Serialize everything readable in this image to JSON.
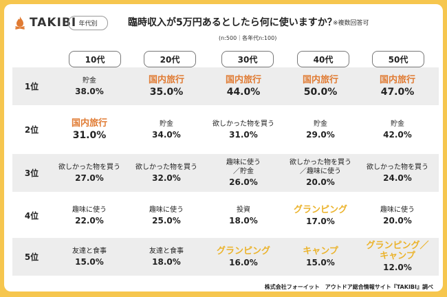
{
  "header": {
    "logo_text": "TAKIBI",
    "badge": "年代別",
    "question": "臨時収入が5万円あるとしたら何に使いますか？",
    "note": "※複数回答可",
    "sample": "(n:500｜各年代n:100)"
  },
  "colors": {
    "background": "#F6C64E",
    "accent_orange": "#E07B33",
    "accent_gold": "#EBB32C",
    "row_shade": "#EDEDED"
  },
  "chart_data": {
    "type": "table",
    "columns": [
      "10代",
      "20代",
      "30代",
      "40代",
      "50代"
    ],
    "rows": [
      {
        "rank": "1位",
        "cells": [
          {
            "item": "貯金",
            "value": "38.0%",
            "style": "plain"
          },
          {
            "item": "国内旅行",
            "value": "35.0%",
            "style": "orange"
          },
          {
            "item": "国内旅行",
            "value": "44.0%",
            "style": "orange"
          },
          {
            "item": "国内旅行",
            "value": "50.0%",
            "style": "orange"
          },
          {
            "item": "国内旅行",
            "value": "47.0%",
            "style": "orange"
          }
        ]
      },
      {
        "rank": "2位",
        "cells": [
          {
            "item": "国内旅行",
            "value": "31.0%",
            "style": "orange"
          },
          {
            "item": "貯金",
            "value": "34.0%",
            "style": "plain"
          },
          {
            "item": "欲しかった物を買う",
            "value": "31.0%",
            "style": "plain"
          },
          {
            "item": "貯金",
            "value": "29.0%",
            "style": "plain"
          },
          {
            "item": "貯金",
            "value": "42.0%",
            "style": "plain"
          }
        ]
      },
      {
        "rank": "3位",
        "cells": [
          {
            "item": "欲しかった物を買う",
            "value": "27.0%",
            "style": "plain"
          },
          {
            "item": "欲しかった物を買う",
            "value": "32.0%",
            "style": "plain"
          },
          {
            "item": "趣味に使う\n／貯金",
            "value": "26.0%",
            "style": "plain"
          },
          {
            "item": "欲しかった物を買う\n／趣味に使う",
            "value": "20.0%",
            "style": "plain"
          },
          {
            "item": "欲しかった物を買う",
            "value": "24.0%",
            "style": "plain"
          }
        ]
      },
      {
        "rank": "4位",
        "cells": [
          {
            "item": "趣味に使う",
            "value": "22.0%",
            "style": "plain"
          },
          {
            "item": "趣味に使う",
            "value": "25.0%",
            "style": "plain"
          },
          {
            "item": "投資",
            "value": "18.0%",
            "style": "plain"
          },
          {
            "item": "グランピング",
            "value": "17.0%",
            "style": "gold"
          },
          {
            "item": "趣味に使う",
            "value": "20.0%",
            "style": "plain"
          }
        ]
      },
      {
        "rank": "5位",
        "cells": [
          {
            "item": "友達と食事",
            "value": "15.0%",
            "style": "plain"
          },
          {
            "item": "友達と食事",
            "value": "18.0%",
            "style": "plain"
          },
          {
            "item": "グランピング",
            "value": "16.0%",
            "style": "gold"
          },
          {
            "item": "キャンプ",
            "value": "15.0%",
            "style": "gold"
          },
          {
            "item": "グランピング／\nキャンプ",
            "value": "12.0%",
            "style": "gold"
          }
        ]
      }
    ]
  },
  "footer": {
    "credit": "株式会社フォーイット　アウトドア総合情報サイト『TAKIBI』調べ"
  }
}
